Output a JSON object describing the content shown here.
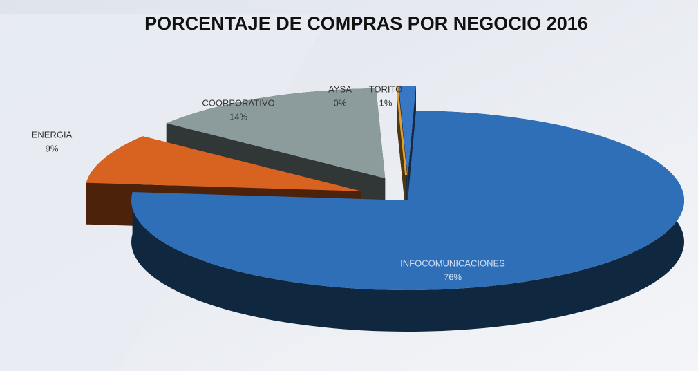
{
  "chart_data": {
    "type": "pie",
    "title": "PORCENTAJE DE COMPRAS POR NEGOCIO 2016",
    "categories": [
      "INFOCOMUNICACIONES",
      "ENERGIA",
      "COORPORATIVO",
      "AYSA",
      "TORITO"
    ],
    "values": [
      76,
      9,
      14,
      0,
      1
    ],
    "value_labels": [
      "76%",
      "9%",
      "14%",
      "0%",
      "1%"
    ],
    "colors": [
      "#2f6fb8",
      "#d8621f",
      "#8c9c9c",
      "#e3a02c",
      "#3877c4"
    ]
  }
}
